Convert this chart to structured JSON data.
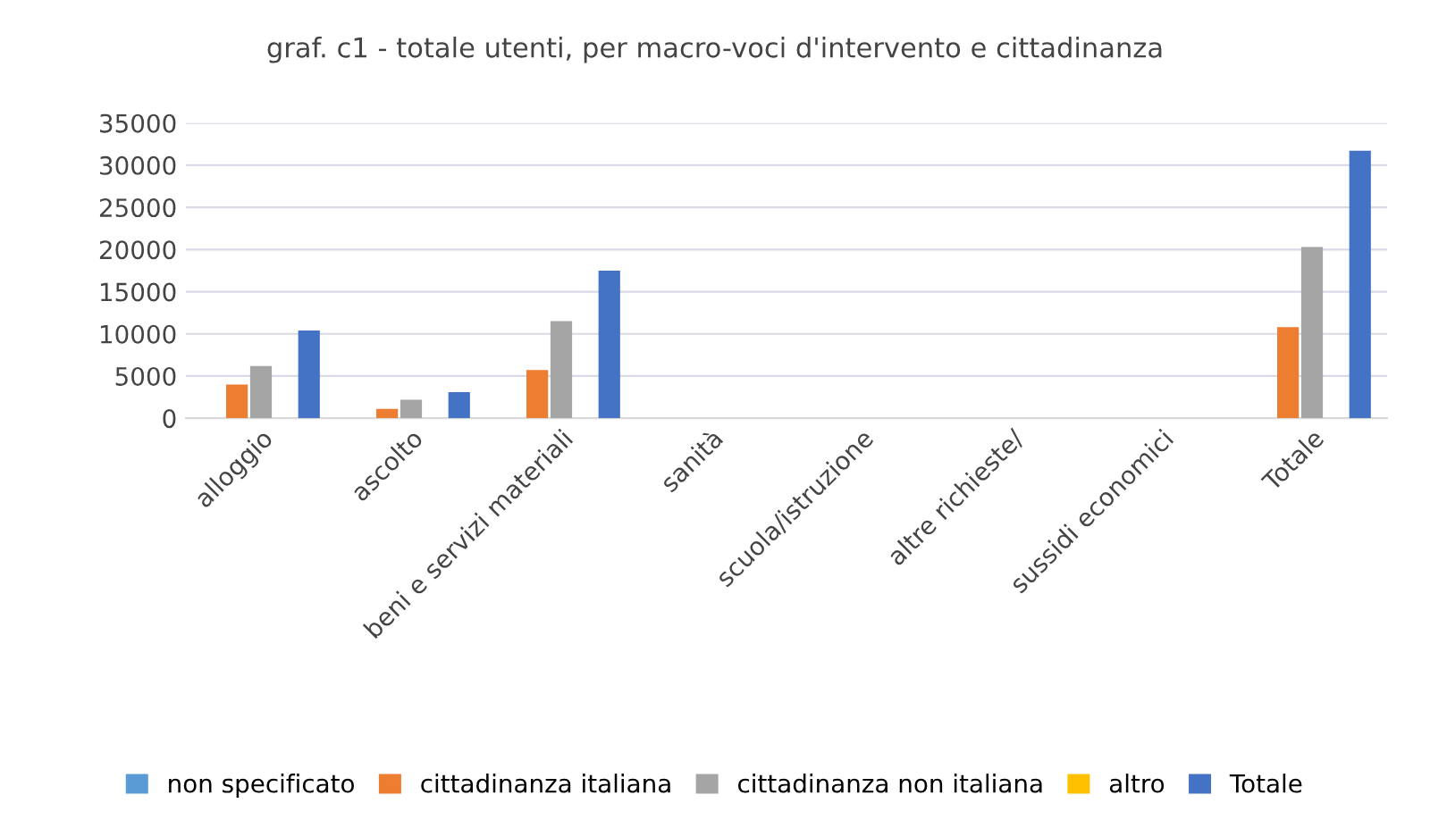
{
  "chart_data": {
    "type": "bar",
    "title": "graf. c1 - totale utenti, per macro-voci d'intervento e cittadinanza",
    "categories": [
      "alloggio",
      "ascolto",
      "beni e servizi materiali",
      "sanità",
      "scuola/istruzione",
      "altre richieste/",
      "sussidi economici",
      "Totale"
    ],
    "series": [
      {
        "name": "non specificato",
        "color": "#5b9bd5",
        "values": [
          0,
          0,
          0,
          0,
          0,
          0,
          0,
          0
        ]
      },
      {
        "name": "cittadinanza italiana",
        "color": "#ed7d31",
        "values": [
          4000,
          1100,
          5700,
          0,
          0,
          0,
          0,
          10800
        ]
      },
      {
        "name": "cittadinanza non italiana",
        "color": "#a5a5a5",
        "values": [
          6200,
          2200,
          11500,
          0,
          0,
          0,
          0,
          20300
        ]
      },
      {
        "name": "altro",
        "color": "#ffc000",
        "values": [
          0,
          0,
          0,
          0,
          0,
          0,
          0,
          0
        ]
      },
      {
        "name": "Totale",
        "color": "#4472c4",
        "values": [
          10400,
          3100,
          17500,
          0,
          0,
          0,
          0,
          31700
        ]
      }
    ],
    "ylim": [
      0,
      35000
    ],
    "yticks": [
      0,
      5000,
      10000,
      15000,
      20000,
      25000,
      30000,
      35000
    ],
    "grid": "y",
    "legend": "bottom"
  }
}
